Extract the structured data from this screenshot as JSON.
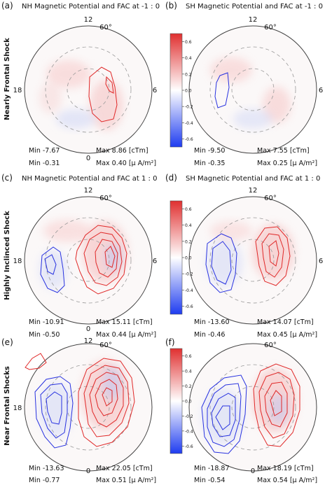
{
  "figure": {
    "colorbar": {
      "ticks": [
        "0.6",
        "0.4",
        "0.2",
        "0.0",
        "-0.2",
        "-0.4",
        "-0.6"
      ],
      "tick_values": [
        0.6,
        0.4,
        0.2,
        0.0,
        -0.2,
        -0.4,
        -0.6
      ],
      "range": [
        -0.7,
        0.7
      ],
      "colors": {
        "max": "#e03030",
        "mid": "#ffffff",
        "min": "#1e3cf0"
      }
    },
    "rows": [
      {
        "label": "Nearly Frontal Shock"
      },
      {
        "label": "Highly Inclinced Shock"
      },
      {
        "label": "Near Frontal Shocks"
      }
    ],
    "panels": [
      {
        "letter": "(a)",
        "title": "NH Magnetic Potential and FAC at -1 : 0",
        "min_pot": "Min  -7.67",
        "max_pot": "Max  8.86 [cTm]",
        "min_fac": "Min  -0.31",
        "max_fac": "Max  0.40 [μ A/m²]"
      },
      {
        "letter": "(b)",
        "title": "SH Magnetic Potential and FAC at -1 : 0",
        "min_pot": "Min  -9.50",
        "max_pot": "Max  7.55 [cTm]",
        "min_fac": "Min  -0.35",
        "max_fac": "Max  0.25 [μ A/m²]"
      },
      {
        "letter": "(c)",
        "title": "NH Magnetic Potential and FAC at 1 : 0",
        "min_pot": "Min  -10.91",
        "max_pot": "Max  15.11 [cTm]",
        "min_fac": "Min  -0.50",
        "max_fac": "Max  0.44 [μ A/m²]"
      },
      {
        "letter": "(d)",
        "title": "SH Magnetic Potential and FAC at 1 : 0",
        "min_pot": "Min  -13.60",
        "max_pot": "Max  14.07 [cTm]",
        "min_fac": "Min  -0.46",
        "max_fac": "Max  0.45 [μ A/m²]"
      },
      {
        "letter": "(e)",
        "title": "",
        "min_pot": "Min  -13.63",
        "max_pot": "Max  22.05 [cTm]",
        "min_fac": "Min  -0.77",
        "max_fac": "Max  0.51 [μ A/m²]"
      },
      {
        "letter": "(f)",
        "title": "",
        "min_pot": "Min  -18.87",
        "max_pot": "Max  18.19 [cTm]",
        "min_fac": "Min  -0.54",
        "max_fac": "Max  0.54 [μ A/m²]"
      }
    ],
    "dial": {
      "noon": "12",
      "midnight": "0",
      "dawn": "6",
      "dusk": "18",
      "latitude": "60°"
    }
  },
  "chart_data": {
    "type": "heatmap",
    "projection": "polar (magnetic local time vs. latitude)",
    "colorscale_range": [
      -0.7,
      0.7
    ],
    "panels": [
      {
        "panel": "(a)",
        "hemisphere": "NH",
        "title": "NH Magnetic Potential and FAC at -1 : 0",
        "potential_cTm": {
          "min": -7.67,
          "max": 8.86
        },
        "fac_uA_per_m2": {
          "min": -0.31,
          "max": 0.4
        }
      },
      {
        "panel": "(b)",
        "hemisphere": "SH",
        "title": "SH Magnetic Potential and FAC at -1 : 0",
        "potential_cTm": {
          "min": -9.5,
          "max": 7.55
        },
        "fac_uA_per_m2": {
          "min": -0.35,
          "max": 0.25
        }
      },
      {
        "panel": "(c)",
        "hemisphere": "NH",
        "title": "NH Magnetic Potential and FAC at 1 : 0",
        "potential_cTm": {
          "min": -10.91,
          "max": 15.11
        },
        "fac_uA_per_m2": {
          "min": -0.5,
          "max": 0.44
        }
      },
      {
        "panel": "(d)",
        "hemisphere": "SH",
        "title": "SH Magnetic Potential and FAC at 1 : 0",
        "potential_cTm": {
          "min": -13.6,
          "max": 14.07
        },
        "fac_uA_per_m2": {
          "min": -0.46,
          "max": 0.45
        }
      },
      {
        "panel": "(e)",
        "potential_cTm": {
          "min": -13.63,
          "max": 22.05
        },
        "fac_uA_per_m2": {
          "min": -0.77,
          "max": 0.51
        }
      },
      {
        "panel": "(f)",
        "potential_cTm": {
          "min": -18.87,
          "max": 18.19
        },
        "fac_uA_per_m2": {
          "min": -0.54,
          "max": 0.54
        }
      }
    ]
  }
}
